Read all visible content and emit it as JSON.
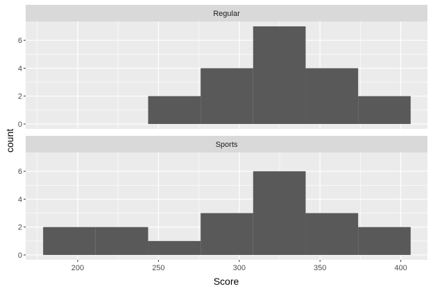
{
  "chart_data": {
    "type": "bar",
    "kind": "faceted-histogram",
    "xlabel": "Score",
    "ylabel": "count",
    "xlim": [
      167.8,
      416.5
    ],
    "ylim": [
      -0.35,
      7.35
    ],
    "x_ticks": [
      200,
      250,
      300,
      350,
      400
    ],
    "x_tick_labels": [
      "200",
      "250",
      "300",
      "350",
      "400"
    ],
    "y_ticks": [
      0,
      2,
      4,
      6
    ],
    "y_tick_labels": [
      "0",
      "2",
      "4",
      "6"
    ],
    "grid": true,
    "bar_color": "#595959",
    "panel_background": "#ebebeb",
    "strip_background": "#d9d9d9",
    "facets": [
      {
        "label": "Regular",
        "bins": [
          {
            "x0": 178.6,
            "x1": 211.1,
            "count": 0
          },
          {
            "x0": 211.1,
            "x1": 243.6,
            "count": 0
          },
          {
            "x0": 243.6,
            "x1": 276.1,
            "count": 2
          },
          {
            "x0": 276.1,
            "x1": 308.6,
            "count": 4
          },
          {
            "x0": 308.6,
            "x1": 341.1,
            "count": 7
          },
          {
            "x0": 341.1,
            "x1": 373.6,
            "count": 4
          },
          {
            "x0": 373.6,
            "x1": 406.1,
            "count": 2
          }
        ]
      },
      {
        "label": "Sports",
        "bins": [
          {
            "x0": 178.6,
            "x1": 211.1,
            "count": 2
          },
          {
            "x0": 211.1,
            "x1": 243.6,
            "count": 2
          },
          {
            "x0": 243.6,
            "x1": 276.1,
            "count": 1
          },
          {
            "x0": 276.1,
            "x1": 308.6,
            "count": 3
          },
          {
            "x0": 308.6,
            "x1": 341.1,
            "count": 6
          },
          {
            "x0": 341.1,
            "x1": 373.6,
            "count": 3
          },
          {
            "x0": 373.6,
            "x1": 406.1,
            "count": 2
          }
        ]
      }
    ]
  }
}
